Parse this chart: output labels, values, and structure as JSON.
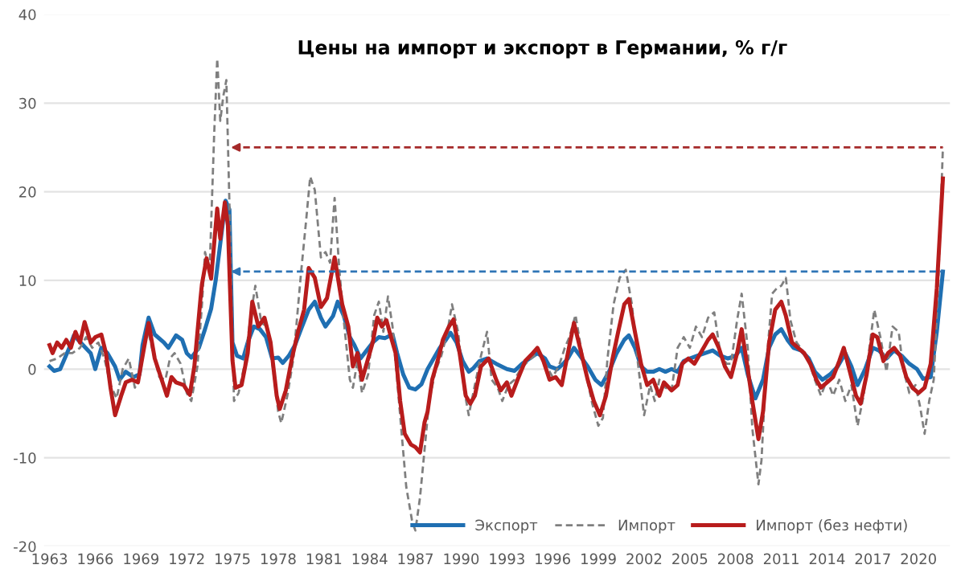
{
  "chart_data": {
    "type": "line",
    "title": "Цены на импорт и экспорт в Германии, % г/г",
    "xlim": [
      1962.6,
      2022.1
    ],
    "xticks": [
      1963,
      1966,
      1969,
      1972,
      1975,
      1978,
      1981,
      1984,
      1987,
      1990,
      1993,
      1996,
      1999,
      2002,
      2005,
      2008,
      2011,
      2014,
      2017,
      2020
    ],
    "ylim": [
      -20,
      40
    ],
    "yticks": [
      -20,
      -10,
      0,
      10,
      20,
      30,
      40
    ],
    "grid": "y",
    "legend": "bottom",
    "ref_lines": [
      {
        "axis": "y",
        "value": 11,
        "color": "#2e75b6",
        "line_style": "dashed"
      },
      {
        "axis": "y",
        "value": 25,
        "color": "#a52a2a",
        "line_style": "dashed"
      }
    ],
    "series": [
      {
        "name": "Экспорт",
        "color": "#1f6fb2",
        "line_style": "solid",
        "x": [
          1963.0,
          1963.3,
          1963.7,
          1964.3,
          1964.6,
          1965.2,
          1965.7,
          1966.0,
          1966.4,
          1966.8,
          1967.3,
          1967.6,
          1968.0,
          1968.5,
          1968.9,
          1969.1,
          1969.5,
          1969.9,
          1970.5,
          1970.8,
          1971.3,
          1971.7,
          1972.0,
          1972.3,
          1972.8,
          1973.2,
          1973.6,
          1973.9,
          1974.55,
          1974.8,
          1975.0,
          1975.3,
          1975.7,
          1976.0,
          1976.4,
          1976.8,
          1977.2,
          1977.6,
          1978.0,
          1978.3,
          1978.7,
          1979.1,
          1979.5,
          1980.0,
          1980.4,
          1980.8,
          1981.1,
          1981.6,
          1981.9,
          1982.3,
          1982.7,
          1983.0,
          1983.4,
          1983.8,
          1984.2,
          1984.6,
          1985.0,
          1985.5,
          1985.8,
          1986.2,
          1986.6,
          1987.0,
          1987.4,
          1987.8,
          1988.2,
          1988.6,
          1989.0,
          1989.3,
          1989.7,
          1990.1,
          1990.5,
          1990.8,
          1991.2,
          1991.7,
          1992.3,
          1993.0,
          1993.5,
          1994.0,
          1994.5,
          1995.0,
          1995.5,
          1995.8,
          1996.3,
          1996.7,
          1997.0,
          1997.4,
          1997.8,
          1998.3,
          1998.8,
          1999.2,
          1999.7,
          2000.2,
          2000.7,
          2001.0,
          2001.4,
          2001.8,
          2002.2,
          2002.6,
          2003.0,
          2003.4,
          2003.8,
          2004.2,
          2004.6,
          2005.0,
          2005.5,
          2006.0,
          2006.5,
          2007.0,
          2007.5,
          2008.0,
          2008.4,
          2008.8,
          2009.3,
          2009.8,
          2010.2,
          2010.6,
          2011.0,
          2011.4,
          2011.8,
          2012.3,
          2012.8,
          2013.2,
          2013.7,
          2014.2,
          2014.7,
          2015.2,
          2015.6,
          2016.0,
          2016.5,
          2017.0,
          2017.4,
          2017.9,
          2018.4,
          2018.9,
          2019.4,
          2019.9,
          2020.3,
          2020.8,
          2021.2,
          2021.6
        ],
        "values": [
          0.3,
          -0.2,
          0,
          2.4,
          3.8,
          2.7,
          1.8,
          0,
          2.4,
          1.8,
          0.3,
          -1.2,
          -0.3,
          -0.9,
          -0.6,
          2.7,
          5.8,
          3.9,
          3,
          2.4,
          3.8,
          3.3,
          1.8,
          1.3,
          2.4,
          4.5,
          6.8,
          10,
          19,
          18,
          3,
          1.5,
          1.2,
          3,
          4.8,
          4.5,
          3.6,
          1.2,
          1.3,
          0.7,
          1.5,
          2.7,
          4.5,
          6.7,
          7.6,
          5.8,
          4.8,
          6,
          7.6,
          6,
          3.6,
          2.7,
          1.2,
          2.1,
          3,
          3.6,
          3.5,
          3.9,
          1.8,
          -0.6,
          -2.1,
          -2.3,
          -1.7,
          0,
          1.2,
          2.4,
          3.3,
          4.1,
          3,
          0.9,
          -0.3,
          0.1,
          0.9,
          1.2,
          0.6,
          0,
          -0.2,
          0.6,
          1.2,
          1.8,
          1.2,
          0.3,
          0,
          0.6,
          1.2,
          2.4,
          1.5,
          0.3,
          -1.2,
          -1.8,
          -0.3,
          1.8,
          3.3,
          3.8,
          2.4,
          0.3,
          -0.3,
          -0.3,
          0,
          -0.3,
          0,
          -0.3,
          0.9,
          1.2,
          1.5,
          1.8,
          2.1,
          1.5,
          1.2,
          1.5,
          2.4,
          -0.6,
          -3.3,
          -1.2,
          2.4,
          3.9,
          4.5,
          3.3,
          2.4,
          2.1,
          1.2,
          -0.3,
          -1.2,
          -0.6,
          0.3,
          1.8,
          0.3,
          -1.8,
          0,
          2.4,
          2.1,
          1.2,
          2.1,
          1.5,
          0.6,
          0,
          -1.1,
          -0.9,
          4.2,
          11
        ]
      },
      {
        "name": "Импорт",
        "color": "#7f7f7f",
        "line_style": "dashed",
        "x": [
          1963.0,
          1963.5,
          1964.0,
          1964.5,
          1965.0,
          1965.4,
          1965.8,
          1966.2,
          1966.6,
          1967.0,
          1967.4,
          1967.8,
          1968.2,
          1968.6,
          1969.0,
          1969.4,
          1969.8,
          1970.2,
          1970.6,
          1970.9,
          1971.2,
          1971.6,
          1972.0,
          1972.3,
          1972.7,
          1973.0,
          1973.2,
          1973.5,
          1973.8,
          1974.0,
          1974.2,
          1974.4,
          1974.6,
          1974.8,
          1975.1,
          1975.4,
          1975.8,
          1976.2,
          1976.5,
          1976.9,
          1977.3,
          1977.7,
          1978.0,
          1978.2,
          1978.6,
          1979.0,
          1979.5,
          1979.8,
          1980.1,
          1980.4,
          1980.8,
          1981.1,
          1981.4,
          1981.7,
          1982.0,
          1982.3,
          1982.7,
          1982.9,
          1983.2,
          1983.5,
          1983.9,
          1984.3,
          1984.6,
          1984.9,
          1985.2,
          1985.5,
          1985.8,
          1986.1,
          1986.4,
          1986.8,
          1987.0,
          1987.3,
          1987.6,
          1987.9,
          1988.3,
          1988.7,
          1989.1,
          1989.4,
          1989.8,
          1990.2,
          1990.5,
          1990.9,
          1991.3,
          1991.7,
          1992.0,
          1992.4,
          1992.7,
          1993.1,
          1993.5,
          1993.9,
          1994.4,
          1994.8,
          1995.2,
          1995.6,
          1996.0,
          1996.4,
          1996.8,
          1997.1,
          1997.5,
          1997.8,
          1998.2,
          1998.6,
          1999.0,
          1999.3,
          1999.6,
          2000.0,
          2000.4,
          2000.8,
          2001.2,
          2001.6,
          2002.0,
          2002.4,
          2002.7,
          2003.0,
          2003.4,
          2003.8,
          2004.2,
          2004.6,
          2005.0,
          2005.4,
          2005.8,
          2006.2,
          2006.6,
          2007.0,
          2007.4,
          2007.7,
          2008.1,
          2008.4,
          2008.8,
          2009.1,
          2009.5,
          2009.7,
          2010.0,
          2010.4,
          2010.7,
          2011.0,
          2011.3,
          2011.6,
          2012.0,
          2012.4,
          2012.8,
          2013.2,
          2013.6,
          2014.0,
          2014.4,
          2014.8,
          2015.2,
          2015.6,
          2016.0,
          2016.4,
          2016.8,
          2017.1,
          2017.5,
          2017.9,
          2018.3,
          2018.7,
          2019.0,
          2019.4,
          2019.8,
          2020.1,
          2020.4,
          2020.7,
          2021.0,
          2021.3,
          2021.6
        ],
        "values": [
          0.9,
          1.2,
          1.8,
          1.8,
          2.4,
          3.6,
          2.4,
          3,
          1.2,
          -1.8,
          -3.3,
          0,
          1.2,
          -2.1,
          0,
          4.8,
          1.8,
          -0.9,
          -1.2,
          1.2,
          1.8,
          0.6,
          -2.7,
          -3.6,
          0.3,
          7.3,
          13.2,
          11.1,
          26.5,
          35,
          28,
          30.8,
          32.6,
          18.7,
          -3.6,
          -2.7,
          0.6,
          6.1,
          9.4,
          5.2,
          4.8,
          -0.6,
          -4.8,
          -6.1,
          -3,
          1.2,
          10.9,
          16.2,
          21.7,
          20.2,
          12.6,
          13.2,
          12,
          19.3,
          11.4,
          5.5,
          -1.2,
          -2.1,
          0.9,
          -2.7,
          -0.6,
          6.1,
          7.6,
          4.2,
          8.2,
          4.8,
          -1.2,
          -7.3,
          -13.3,
          -17.3,
          -18.2,
          -14.5,
          -9.1,
          -3.6,
          -0.3,
          1.5,
          4.2,
          7.3,
          4.2,
          -2.4,
          -5.2,
          -1.8,
          1.5,
          4.2,
          -1.2,
          -2.1,
          -3.6,
          -1.8,
          -1.2,
          0,
          0.9,
          1.5,
          1.8,
          0.3,
          -0.9,
          0.3,
          2.4,
          3.6,
          6.1,
          3,
          -0.6,
          -3.9,
          -6.4,
          -5.5,
          1.2,
          7.3,
          10.3,
          11.2,
          7.3,
          0.6,
          -5.2,
          -1.8,
          -3.6,
          -1.2,
          -2.1,
          -2.4,
          2.4,
          3.6,
          2.4,
          4.8,
          3.6,
          5.8,
          6.4,
          1.8,
          0.6,
          0.6,
          5.5,
          8.5,
          2.4,
          -6.7,
          -13,
          -10.3,
          0,
          8.5,
          9.1,
          9.4,
          10.3,
          5.5,
          3,
          2.1,
          0.9,
          -1.2,
          -3,
          -1.2,
          -3,
          -1.2,
          -3.6,
          -1.8,
          -6.4,
          -3,
          2.7,
          6.7,
          3.6,
          -0.3,
          4.8,
          4.2,
          0,
          -2.7,
          -1.8,
          -4.2,
          -7.3,
          -3.6,
          -1.2,
          10,
          25
        ]
      },
      {
        "name": "Импорт (без нефти)",
        "color": "#b81c1c",
        "line_style": "solid",
        "x": [
          1963.0,
          1963.2,
          1963.5,
          1963.8,
          1964.1,
          1964.4,
          1964.7,
          1965.0,
          1965.3,
          1965.7,
          1966.0,
          1966.4,
          1966.7,
          1967.0,
          1967.3,
          1967.7,
          1968.0,
          1968.4,
          1968.8,
          1969.2,
          1969.5,
          1969.9,
          1970.3,
          1970.7,
          1971.0,
          1971.3,
          1971.8,
          1972.2,
          1972.5,
          1972.9,
          1973.0,
          1973.3,
          1973.6,
          1974.0,
          1974.2,
          1974.5,
          1974.7,
          1975.0,
          1975.2,
          1975.6,
          1976.0,
          1976.3,
          1976.7,
          1977.1,
          1977.5,
          1977.9,
          1978.1,
          1978.5,
          1978.9,
          1979.3,
          1979.7,
          1980.0,
          1980.4,
          1980.8,
          1981.2,
          1981.7,
          1982.2,
          1982.6,
          1982.9,
          1983.2,
          1983.5,
          1983.9,
          1984.2,
          1984.5,
          1984.8,
          1985.1,
          1985.4,
          1985.7,
          1986.0,
          1986.3,
          1986.7,
          1987.0,
          1987.3,
          1987.6,
          1987.8,
          1988.1,
          1988.5,
          1988.8,
          1989.2,
          1989.5,
          1989.9,
          1990.3,
          1990.6,
          1990.9,
          1991.3,
          1991.8,
          1992.3,
          1992.6,
          1993.0,
          1993.3,
          1993.7,
          1994.2,
          1994.7,
          1995.0,
          1995.4,
          1995.8,
          1996.2,
          1996.6,
          1997.0,
          1997.4,
          1997.8,
          1998.3,
          1998.7,
          1999.1,
          1999.5,
          1999.9,
          2000.3,
          2000.7,
          2001.0,
          2001.4,
          2001.8,
          2002.2,
          2002.6,
          2003.0,
          2003.3,
          2003.8,
          2004.2,
          2004.5,
          2004.9,
          2005.3,
          2005.7,
          2006.2,
          2006.5,
          2006.9,
          2007.3,
          2007.7,
          2008.1,
          2008.4,
          2008.8,
          2009.1,
          2009.5,
          2009.8,
          2010.2,
          2010.6,
          2011.0,
          2011.3,
          2011.7,
          2012.1,
          2012.5,
          2012.9,
          2013.3,
          2013.6,
          2014.0,
          2014.4,
          2014.8,
          2015.1,
          2015.5,
          2015.9,
          2016.2,
          2016.6,
          2017.0,
          2017.3,
          2017.7,
          2018.0,
          2018.4,
          2018.8,
          2019.2,
          2019.6,
          2020.0,
          2020.4,
          2020.8,
          2021.2,
          2021.6
        ],
        "values": [
          2.7,
          1.8,
          3,
          2.4,
          3.3,
          2.4,
          4.2,
          3,
          5.3,
          3,
          3.6,
          3.9,
          1.8,
          -2.1,
          -5.2,
          -3,
          -1.5,
          -1.2,
          -1.5,
          2.4,
          5.2,
          1.2,
          -0.9,
          -3,
          -0.9,
          -1.5,
          -1.8,
          -2.9,
          0.3,
          7.9,
          9.6,
          12.5,
          10.2,
          18.1,
          14.7,
          18.8,
          16.2,
          1,
          -2.1,
          -1.8,
          1.8,
          7.6,
          4.8,
          5.8,
          3,
          -3,
          -4.5,
          -2.4,
          1.2,
          4.2,
          6.7,
          11.4,
          10.3,
          7,
          8,
          12.6,
          7.3,
          4.8,
          0.3,
          1.8,
          -1.2,
          1.2,
          3,
          5.8,
          4.8,
          5.5,
          3.6,
          1.8,
          -3.6,
          -7.3,
          -8.5,
          -8.8,
          -9.4,
          -6,
          -4.8,
          -1.2,
          1.2,
          3.3,
          4.8,
          5.6,
          1.8,
          -3,
          -3.9,
          -3,
          0.3,
          1.2,
          -1.2,
          -2.4,
          -1.5,
          -3,
          -1.2,
          0.9,
          1.8,
          2.4,
          0.9,
          -1.2,
          -0.9,
          -1.8,
          1.8,
          5.2,
          2.4,
          -1.2,
          -3.6,
          -5.2,
          -3,
          0.9,
          4.2,
          7.3,
          7.9,
          4.2,
          0.6,
          -1.8,
          -1.2,
          -3,
          -1.5,
          -2.4,
          -1.8,
          0.6,
          1.2,
          0.6,
          1.8,
          3.3,
          3.9,
          2.4,
          0.3,
          -0.9,
          1.8,
          4.5,
          0,
          -3.6,
          -7.9,
          -4.8,
          3,
          6.7,
          7.6,
          6,
          3,
          2.4,
          1.8,
          0.6,
          -1.2,
          -2.1,
          -1.5,
          -0.9,
          0.9,
          2.4,
          -0.3,
          -3,
          -3.9,
          -0.6,
          3.9,
          3.6,
          0.9,
          1.8,
          2.4,
          1.5,
          -0.9,
          -2.1,
          -2.7,
          -2.1,
          0.6,
          9.1,
          21.5
        ]
      }
    ]
  }
}
